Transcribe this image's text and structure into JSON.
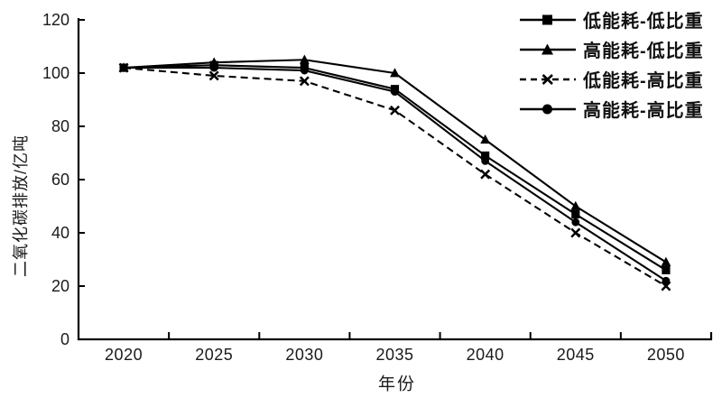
{
  "chart_data": {
    "type": "line",
    "title": "",
    "xlabel": "年份",
    "ylabel": "二氧化碳排放/亿吨",
    "categories": [
      "2020",
      "2025",
      "2030",
      "2035",
      "2040",
      "2045",
      "2050"
    ],
    "y_ticks": [
      0,
      20,
      40,
      60,
      80,
      100,
      120
    ],
    "ylim": [
      0,
      120
    ],
    "grid": false,
    "legend_position": "top-right",
    "series": [
      {
        "name": "低能耗-低比重",
        "marker": "square",
        "line_style": "solid",
        "values": [
          102,
          103,
          102,
          94,
          69,
          47,
          26
        ]
      },
      {
        "name": "高能耗-低比重",
        "marker": "triangle",
        "line_style": "solid",
        "values": [
          102,
          104,
          105,
          100,
          75,
          50,
          29
        ]
      },
      {
        "name": "低能耗-高比重",
        "marker": "x",
        "line_style": "dashed",
        "values": [
          102,
          99,
          97,
          86,
          62,
          40,
          20
        ]
      },
      {
        "name": "高能耗-高比重",
        "marker": "circle",
        "line_style": "solid",
        "values": [
          102,
          102,
          101,
          93,
          67,
          44,
          22
        ]
      }
    ],
    "colors": {
      "line": "#000000",
      "background": "#ffffff",
      "text": "#1a1a1a"
    }
  }
}
